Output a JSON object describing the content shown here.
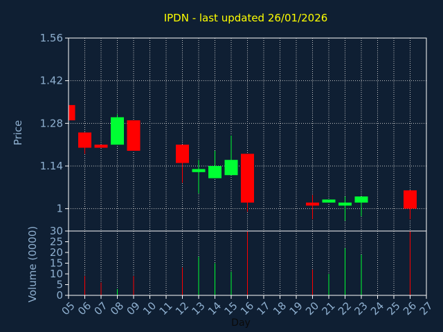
{
  "chart_data": {
    "type": "candlestick",
    "title": "IPDN - last updated 26/01/2026",
    "xlabel": "Day",
    "price_panel": {
      "ylabel": "Price",
      "ylim": [
        0.9266,
        1.56
      ],
      "yticks": [
        1,
        1.14,
        1.28,
        1.42,
        1.56
      ],
      "ytick_labels": [
        "1",
        "1.14",
        "1.28",
        "1.42",
        "1.56"
      ]
    },
    "volume_panel": {
      "ylabel": "Volume (0000)",
      "ylim": [
        0,
        30
      ],
      "yticks": [
        0,
        5,
        10,
        15,
        20,
        25,
        30
      ],
      "ytick_labels": [
        "0",
        "5",
        "10",
        "15",
        "20",
        "25",
        "30"
      ]
    },
    "x_days": [
      5,
      27
    ],
    "x_tick_labels": [
      "05",
      "06",
      "07",
      "08",
      "09",
      "10",
      "11",
      "12",
      "13",
      "14",
      "15",
      "16",
      "17",
      "18",
      "19",
      "20",
      "21",
      "22",
      "23",
      "24",
      "25",
      "26",
      "27"
    ],
    "grid": true,
    "candles": [
      {
        "day": 5,
        "open": 1.34,
        "high": 1.34,
        "low": 1.29,
        "close": 1.29,
        "volume": 0
      },
      {
        "day": 6,
        "open": 1.25,
        "high": 1.25,
        "low": 1.18,
        "close": 1.2,
        "volume": 9
      },
      {
        "day": 7,
        "open": 1.21,
        "high": 1.21,
        "low": 1.2,
        "close": 1.2,
        "volume": 6
      },
      {
        "day": 8,
        "open": 1.21,
        "high": 1.31,
        "low": 1.21,
        "close": 1.3,
        "volume": 3
      },
      {
        "day": 9,
        "open": 1.29,
        "high": 1.29,
        "low": 1.19,
        "close": 1.19,
        "volume": 9
      },
      {
        "day": 12,
        "open": 1.21,
        "high": 1.21,
        "low": 1.085,
        "close": 1.15,
        "volume": 13
      },
      {
        "day": 13,
        "open": 1.12,
        "high": 1.16,
        "low": 1.05,
        "close": 1.13,
        "volume": 18
      },
      {
        "day": 14,
        "open": 1.1,
        "high": 1.19,
        "low": 1.1,
        "close": 1.14,
        "volume": 15
      },
      {
        "day": 15,
        "open": 1.11,
        "high": 1.24,
        "low": 1.11,
        "close": 1.16,
        "volume": 11
      },
      {
        "day": 16,
        "open": 1.18,
        "high": 1.18,
        "low": 0.99,
        "close": 1.02,
        "volume": 30
      },
      {
        "day": 20,
        "open": 1.02,
        "high": 1.045,
        "low": 0.965,
        "close": 1.01,
        "volume": 12
      },
      {
        "day": 21,
        "open": 1.02,
        "high": 1.03,
        "low": 1.02,
        "close": 1.03,
        "volume": 10
      },
      {
        "day": 22,
        "open": 1.01,
        "high": 1.04,
        "low": 0.96,
        "close": 1.02,
        "volume": 22
      },
      {
        "day": 23,
        "open": 1.02,
        "high": 1.04,
        "low": 0.975,
        "close": 1.04,
        "volume": 19
      },
      {
        "day": 26,
        "open": 1.06,
        "high": 1.06,
        "low": 0.965,
        "close": 1.0,
        "volume": 30
      }
    ],
    "colors": {
      "background": "#0f1f33",
      "text": "#8fb0d0",
      "title": "#ffff00",
      "up": "#00ff33",
      "down": "#ff0000",
      "frame": "#ffffff",
      "grid": "#c8c8c8"
    }
  }
}
